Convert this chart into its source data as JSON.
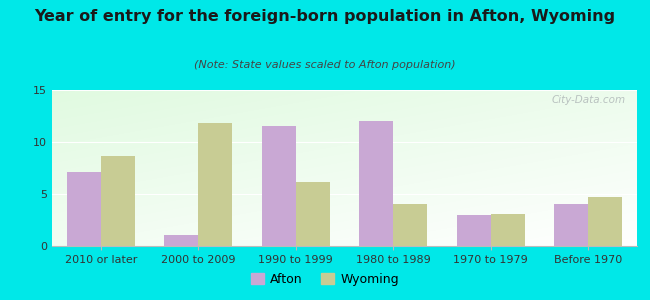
{
  "title": "Year of entry for the foreign-born population in Afton, Wyoming",
  "subtitle": "(Note: State values scaled to Afton population)",
  "categories": [
    "2010 or later",
    "2000 to 2009",
    "1990 to 1999",
    "1980 to 1989",
    "1970 to 1979",
    "Before 1970"
  ],
  "afton_values": [
    7.1,
    1.1,
    11.5,
    12.0,
    3.0,
    4.0
  ],
  "wyoming_values": [
    8.7,
    11.8,
    6.2,
    4.0,
    3.1,
    4.7
  ],
  "afton_color": "#c9a8d4",
  "wyoming_color": "#c8cc94",
  "background_color": "#00e8e8",
  "ylim": [
    0,
    15
  ],
  "yticks": [
    0,
    5,
    10,
    15
  ],
  "bar_width": 0.35,
  "watermark": "City-Data.com",
  "legend_afton": "Afton",
  "legend_wyoming": "Wyoming",
  "title_fontsize": 11.5,
  "subtitle_fontsize": 8,
  "tick_fontsize": 8,
  "legend_fontsize": 9
}
